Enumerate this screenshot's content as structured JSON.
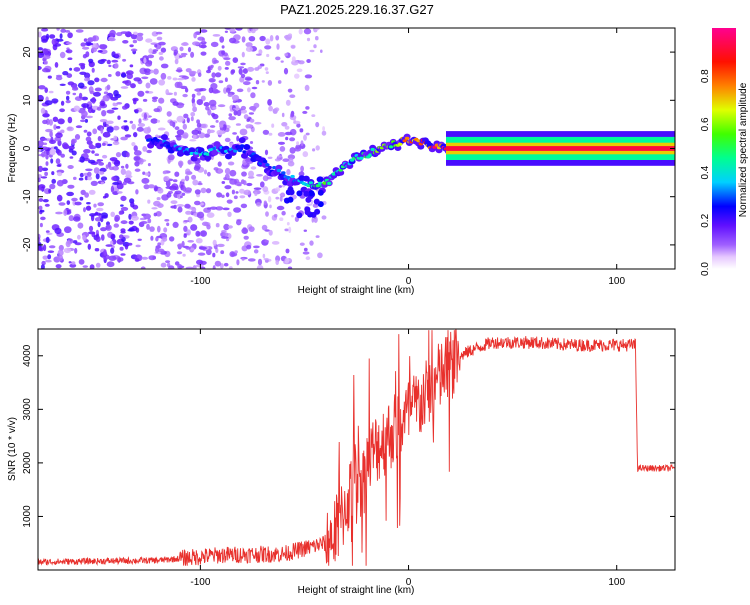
{
  "title": "PAZ1.2025.229.16.37.G27",
  "chart_data": [
    {
      "type": "heatmap",
      "title": "PAZ1.2025.229.16.37.G27",
      "xlabel": "Height of straight line (km)",
      "ylabel": "Frequency (Hz)",
      "xlim": [
        -178,
        128
      ],
      "ylim": [
        -25,
        25
      ],
      "xticks": [
        -100,
        0,
        100
      ],
      "yticks": [
        -20,
        -10,
        0,
        10,
        20
      ],
      "colorbar": {
        "label": "Normalized spectral amplitude",
        "range": [
          0,
          1
        ],
        "ticks": [
          "0.0",
          "0.2",
          "0.4",
          "0.6",
          "0.8"
        ],
        "colormap": "rainbow: white-violet-blue-cyan-green-yellow-orange-red-magenta"
      },
      "ridge": {
        "x": [
          -125,
          -110,
          -100,
          -90,
          -80,
          -70,
          -60,
          -50,
          -45,
          -40,
          -35,
          -30,
          -25,
          -20,
          -15,
          -10,
          -5,
          0,
          5,
          10,
          15,
          20,
          50,
          100,
          128
        ],
        "y": [
          2,
          0,
          -1,
          0,
          0,
          -3,
          -5.5,
          -7,
          -8,
          -7.5,
          -5.5,
          -3.5,
          -1.5,
          -1.3,
          -0.2,
          0.8,
          1.2,
          2,
          1.5,
          0.6,
          0.2,
          0,
          0,
          0,
          0
        ],
        "amplitude": [
          0.3,
          0.35,
          0.45,
          0.4,
          0.3,
          0.3,
          0.35,
          0.4,
          0.55,
          0.6,
          0.55,
          0.5,
          0.5,
          0.55,
          0.65,
          0.65,
          0.7,
          0.9,
          0.9,
          0.95,
          1,
          1,
          1,
          1,
          1
        ]
      },
      "grid": false
    },
    {
      "type": "line",
      "xlabel": "Height of straight line (km)",
      "ylabel": "SNR (10 * v/v)",
      "xlim": [
        -178,
        128
      ],
      "ylim": [
        0,
        4500
      ],
      "xticks": [
        -100,
        0,
        100
      ],
      "yticks": [
        1000,
        2000,
        3000,
        4000
      ],
      "color": "#e8302c",
      "envelope": {
        "x": [
          -178,
          -120,
          -90,
          -60,
          -50,
          -40,
          -35,
          -30,
          -27,
          -25,
          -22,
          -20,
          -17,
          -15,
          -10,
          -5,
          0,
          5,
          10,
          15,
          20,
          25,
          30,
          40,
          50,
          60,
          70,
          80,
          90,
          100,
          105,
          109,
          110,
          111,
          120,
          128
        ],
        "y": [
          150,
          180,
          280,
          300,
          400,
          500,
          700,
          1200,
          1600,
          1800,
          1600,
          2000,
          2200,
          2300,
          2500,
          2700,
          2900,
          3100,
          3300,
          3600,
          3800,
          4000,
          4100,
          4250,
          4250,
          4250,
          4220,
          4200,
          4200,
          4200,
          4200,
          4200,
          1900,
          1900,
          1900,
          1900
        ]
      },
      "grid": false
    }
  ]
}
